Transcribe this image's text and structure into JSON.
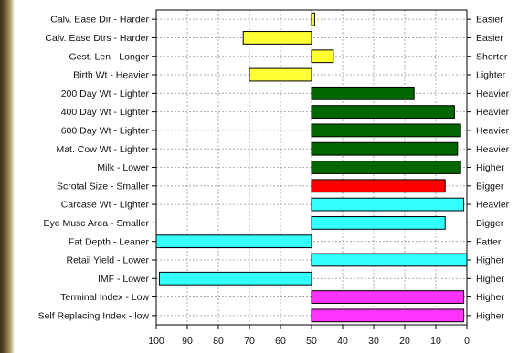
{
  "chart_data": {
    "type": "bar",
    "orientation": "horizontal",
    "x_axis": {
      "reversed": true,
      "range": [
        100,
        0
      ],
      "center": 50,
      "ticks": [
        "100",
        "90",
        "80",
        "70",
        "60",
        "50",
        "40",
        "30",
        "20",
        "10",
        "0"
      ]
    },
    "grid": true,
    "bars": [
      {
        "left_label": "Calv. Ease Dir - Harder",
        "right_label": "Easier",
        "value": 49,
        "color": "#ffff33"
      },
      {
        "left_label": "Calv. Ease Dtrs - Harder",
        "right_label": "Easier",
        "value": 72,
        "color": "#ffff33"
      },
      {
        "left_label": "Gest. Len - Longer",
        "right_label": "Shorter",
        "value": 43,
        "color": "#ffff33"
      },
      {
        "left_label": "Birth Wt - Heavier",
        "right_label": "Lighter",
        "value": 70,
        "color": "#ffff33"
      },
      {
        "left_label": "200 Day Wt - Lighter",
        "right_label": "Heavier",
        "value": 17,
        "color": "#006600"
      },
      {
        "left_label": "400 Day Wt - Lighter",
        "right_label": "Heavier",
        "value": 4,
        "color": "#006600"
      },
      {
        "left_label": "600 Day Wt - Lighter",
        "right_label": "Heavier",
        "value": 2,
        "color": "#006600"
      },
      {
        "left_label": "Mat. Cow Wt - Lighter",
        "right_label": "Heavier",
        "value": 3,
        "color": "#006600"
      },
      {
        "left_label": "Milk - Lower",
        "right_label": "Higher",
        "value": 2,
        "color": "#006600"
      },
      {
        "left_label": "Scrotal Size - Smaller",
        "right_label": "Bigger",
        "value": 7,
        "color": "#ff0000"
      },
      {
        "left_label": "Carcase Wt - Lighter",
        "right_label": "Heavier",
        "value": 1,
        "color": "#33ffff"
      },
      {
        "left_label": "Eye Musc Area - Smaller",
        "right_label": "Bigger",
        "value": 7,
        "color": "#33ffff"
      },
      {
        "left_label": "Fat Depth - Leaner",
        "right_label": "Fatter",
        "value": 100,
        "color": "#33ffff"
      },
      {
        "left_label": "Retail Yield - Lower",
        "right_label": "Higher",
        "value": 0,
        "color": "#33ffff"
      },
      {
        "left_label": "IMF - Lower",
        "right_label": "Higher",
        "value": 99,
        "color": "#33ffff"
      },
      {
        "left_label": "Terminal Index - Low",
        "right_label": "Higher",
        "value": 1,
        "color": "#ff33ff"
      },
      {
        "left_label": "Self Replacing Index - low",
        "right_label": "Higher",
        "value": 1,
        "color": "#ff33ff"
      }
    ]
  }
}
